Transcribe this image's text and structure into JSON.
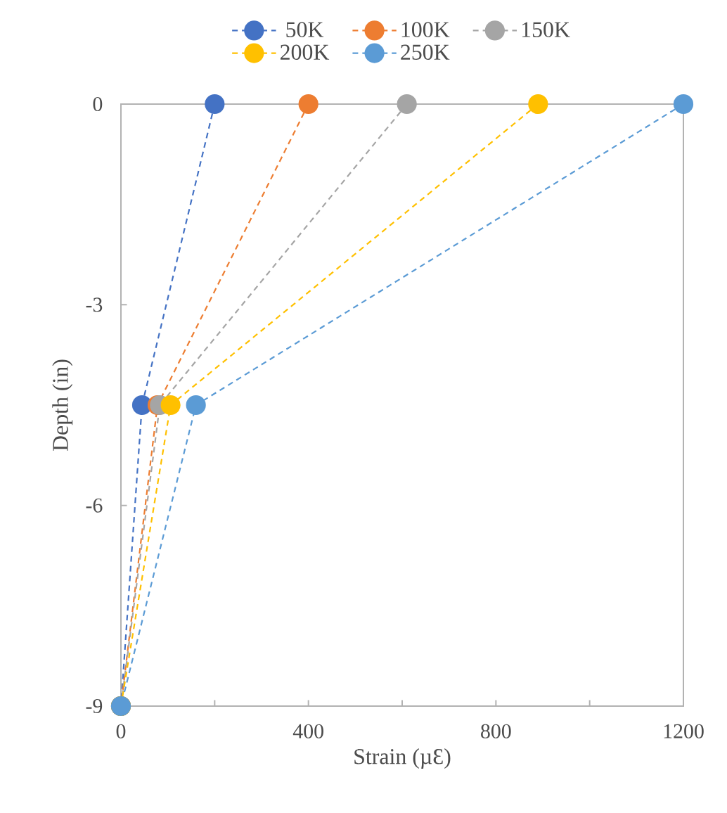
{
  "chart_data": {
    "type": "line",
    "xlabel": "Strain (µƐ)",
    "ylabel": "Depth (in)",
    "xlim": [
      0,
      1200
    ],
    "xticks": [
      0,
      {
        "value": 200,
        "label": null
      },
      400,
      {
        "value": 600,
        "label": null
      },
      800,
      {
        "value": 1000,
        "label": null
      },
      1200
    ],
    "ylim": [
      -9,
      0
    ],
    "yticks": [
      0,
      -3,
      -6,
      -9
    ],
    "legend": "top",
    "marker": "circle",
    "line_style": "dashed",
    "grid": false,
    "series": [
      {
        "name": "50K",
        "color": "#4472c4",
        "x": [
          200,
          45,
          0
        ],
        "values": [
          0,
          -4.5,
          -9
        ]
      },
      {
        "name": "100K",
        "color": "#ed7d31",
        "x": [
          400,
          78,
          0
        ],
        "values": [
          0,
          -4.5,
          -9
        ]
      },
      {
        "name": "150K",
        "color": "#a5a5a5",
        "x": [
          610,
          83,
          0
        ],
        "values": [
          0,
          -4.5,
          -9
        ]
      },
      {
        "name": "200K",
        "color": "#ffc000",
        "x": [
          890,
          106,
          0
        ],
        "values": [
          0,
          -4.5,
          -9
        ]
      },
      {
        "name": "250K",
        "color": "#5b9bd5",
        "x": [
          1200,
          160,
          0
        ],
        "values": [
          0,
          -4.5,
          -9
        ]
      }
    ]
  }
}
